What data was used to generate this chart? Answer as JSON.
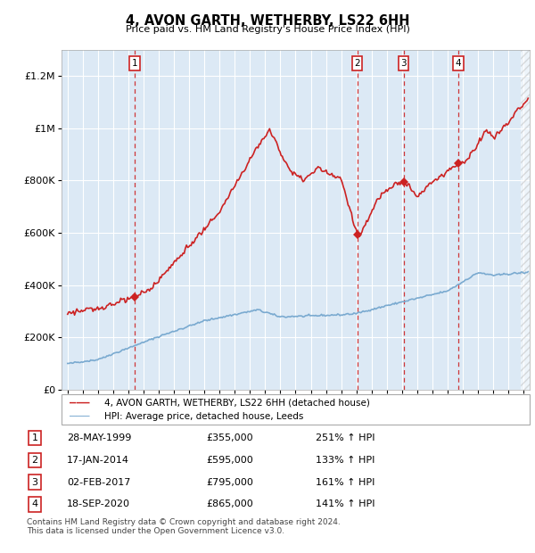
{
  "title": "4, AVON GARTH, WETHERBY, LS22 6HH",
  "subtitle": "Price paid vs. HM Land Registry's House Price Index (HPI)",
  "hpi_color": "#7aaad0",
  "price_color": "#cc2222",
  "background_color": "#dce9f5",
  "legend_entries": [
    "4, AVON GARTH, WETHERBY, LS22 6HH (detached house)",
    "HPI: Average price, detached house, Leeds"
  ],
  "transactions": [
    {
      "num": 1,
      "date": "28-MAY-1999",
      "price": 355000,
      "hpi_pct": "251% ↑ HPI",
      "year": 1999.4
    },
    {
      "num": 2,
      "date": "17-JAN-2014",
      "price": 595000,
      "hpi_pct": "133% ↑ HPI",
      "year": 2014.05
    },
    {
      "num": 3,
      "date": "02-FEB-2017",
      "price": 795000,
      "hpi_pct": "161% ↑ HPI",
      "year": 2017.1
    },
    {
      "num": 4,
      "date": "18-SEP-2020",
      "price": 865000,
      "hpi_pct": "141% ↑ HPI",
      "year": 2020.72
    }
  ],
  "footer": "Contains HM Land Registry data © Crown copyright and database right 2024.\nThis data is licensed under the Open Government Licence v3.0.",
  "ylim": [
    0,
    1300000
  ],
  "yticks": [
    0,
    200000,
    400000,
    600000,
    800000,
    1000000,
    1200000
  ],
  "xlim_start": 1994.6,
  "xlim_end": 2025.4
}
